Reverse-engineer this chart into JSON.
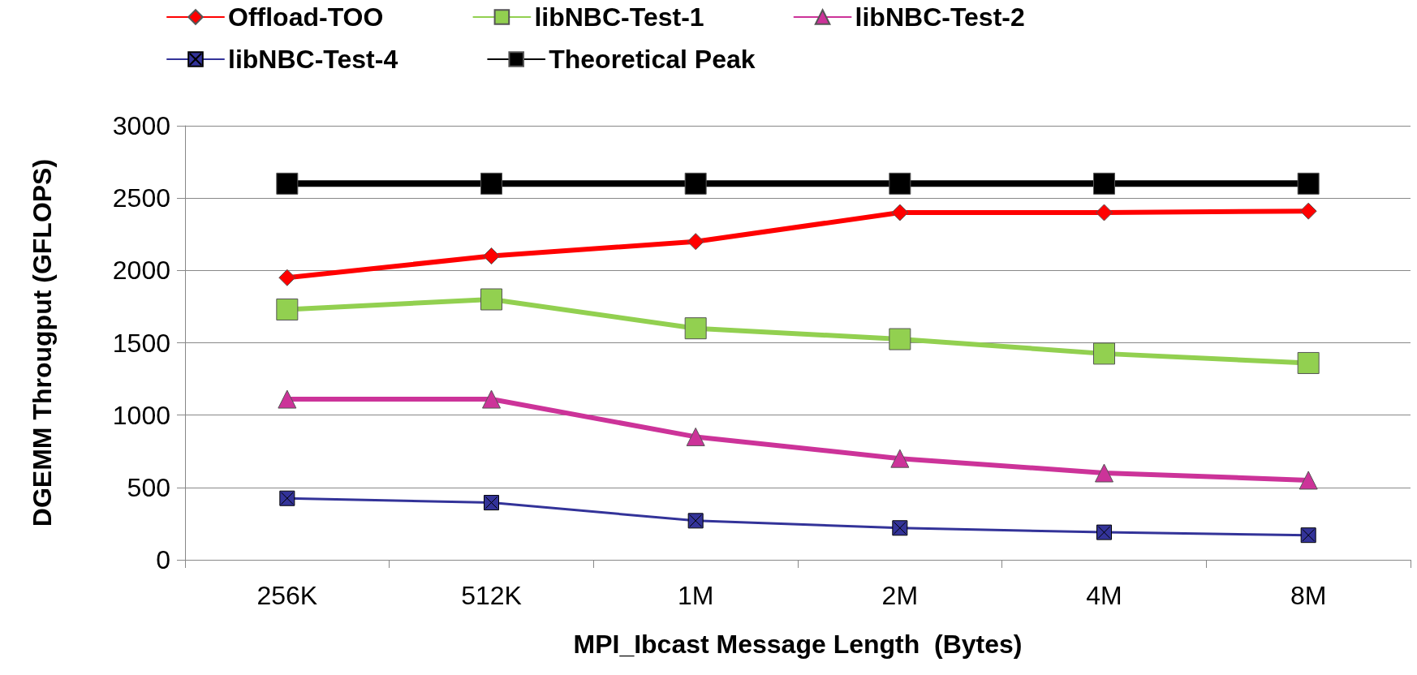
{
  "chart_data": {
    "type": "line",
    "xlabel": "MPI_Ibcast Message Length  (Bytes)",
    "ylabel": "DGEMM Througput (GFLOPS)",
    "categories": [
      "256K",
      "512K",
      "1M",
      "2M",
      "4M",
      "8M"
    ],
    "series": [
      {
        "name": "Offload-TOO",
        "color": "#ff0000",
        "marker": "diamond",
        "values": [
          1950,
          2100,
          2200,
          2400,
          2400,
          2410
        ]
      },
      {
        "name": "libNBC-Test-1",
        "color": "#92d050",
        "marker": "square",
        "values": [
          1730,
          1800,
          1600,
          1525,
          1425,
          1360
        ]
      },
      {
        "name": "libNBC-Test-2",
        "color": "#cc3399",
        "marker": "triangle",
        "values": [
          1110,
          1110,
          850,
          700,
          600,
          550
        ]
      },
      {
        "name": "libNBC-Test-4",
        "color": "#333399",
        "marker": "cross",
        "values": [
          425,
          395,
          270,
          220,
          190,
          170
        ]
      },
      {
        "name": "Theoretical Peak",
        "color": "#000000",
        "marker": "square",
        "values": [
          2600,
          2600,
          2600,
          2600,
          2600,
          2600
        ]
      }
    ],
    "ylim": [
      0,
      3000
    ],
    "yticks": [
      0,
      500,
      1000,
      1500,
      2000,
      2500,
      3000
    ],
    "grid": "y",
    "legend": "top"
  }
}
